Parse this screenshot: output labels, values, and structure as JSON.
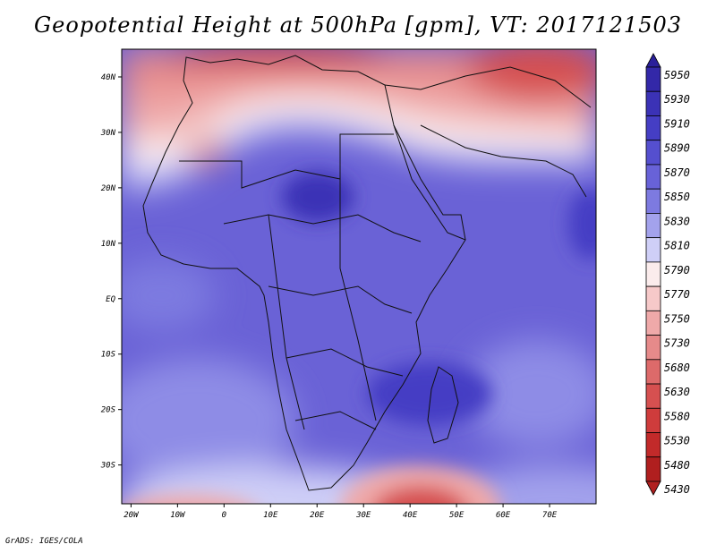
{
  "title": "Geopotential Height at 500hPa [gpm], VT: 2017121503",
  "footer": "GrADS: IGES/COLA",
  "map": {
    "lon_range": [
      -22,
      80
    ],
    "lat_range": [
      -37,
      45
    ],
    "lat_ticks": [
      {
        "value": 40,
        "label": "40N"
      },
      {
        "value": 30,
        "label": "30N"
      },
      {
        "value": 20,
        "label": "20N"
      },
      {
        "value": 10,
        "label": "10N"
      },
      {
        "value": 0,
        "label": "EQ"
      },
      {
        "value": -10,
        "label": "10S"
      },
      {
        "value": -20,
        "label": "20S"
      },
      {
        "value": -30,
        "label": "30S"
      }
    ],
    "lon_ticks": [
      {
        "value": -20,
        "label": "20W"
      },
      {
        "value": -10,
        "label": "10W"
      },
      {
        "value": 0,
        "label": "0"
      },
      {
        "value": 10,
        "label": "10E"
      },
      {
        "value": 20,
        "label": "20E"
      },
      {
        "value": 30,
        "label": "30E"
      },
      {
        "value": 40,
        "label": "40E"
      },
      {
        "value": 50,
        "label": "50E"
      },
      {
        "value": 60,
        "label": "60E"
      },
      {
        "value": 70,
        "label": "70E"
      }
    ]
  },
  "colorbar": {
    "levels": [
      {
        "label": "5950",
        "color": "#2a1f9a"
      },
      {
        "label": "5930",
        "color": "#3328a8"
      },
      {
        "label": "5910",
        "color": "#3b32b6"
      },
      {
        "label": "5890",
        "color": "#453ec4"
      },
      {
        "label": "5870",
        "color": "#554fcf"
      },
      {
        "label": "5850",
        "color": "#6862d8"
      },
      {
        "label": "5830",
        "color": "#7d7ae0"
      },
      {
        "label": "5810",
        "color": "#a3a2ec"
      },
      {
        "label": "5790",
        "color": "#cfcff7"
      },
      {
        "label": "5770",
        "color": "#fbecec"
      },
      {
        "label": "5750",
        "color": "#f6c9c9"
      },
      {
        "label": "5730",
        "color": "#efa9a9"
      },
      {
        "label": "5680",
        "color": "#e68a8a"
      },
      {
        "label": "5630",
        "color": "#dd6a6a"
      },
      {
        "label": "5580",
        "color": "#d65050"
      },
      {
        "label": "5530",
        "color": "#cf3c3c"
      },
      {
        "label": "5480",
        "color": "#c22a2a"
      },
      {
        "label": "5430",
        "color": "#b01f1f"
      }
    ]
  }
}
